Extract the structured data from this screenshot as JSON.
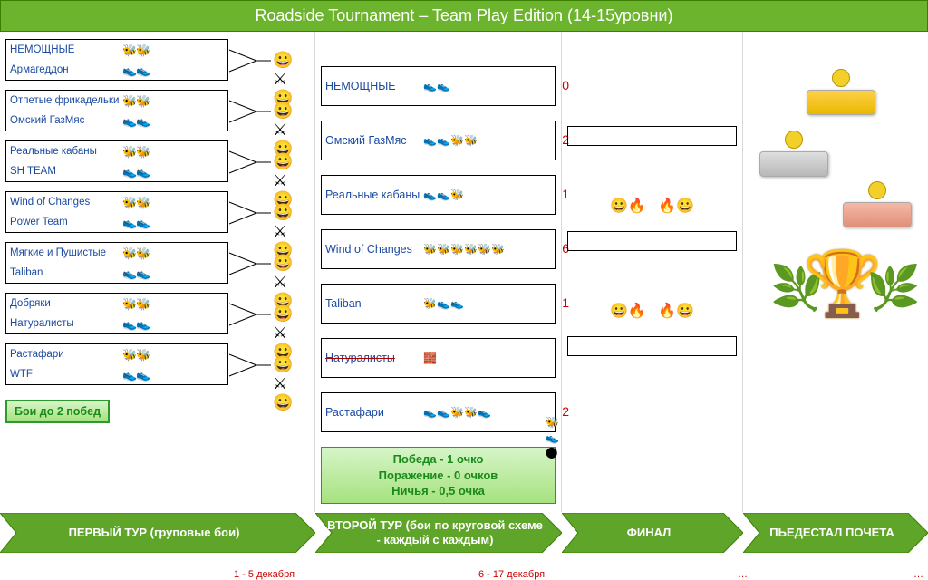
{
  "title": "Roadside Tournament – Team Play Edition (14-15уровни)",
  "colors": {
    "header_bg": "#6cb42e",
    "header_text": "#ffffff",
    "team_text": "#1a4aa0",
    "score_text": "#cc0000",
    "arrow_fill": "#5fa52a",
    "arrow_stroke": "#3a8000",
    "date_text": "#cc0000",
    "rules_text": "#1a8a1a",
    "border": "#000000",
    "col_divider": "#d9d9d9"
  },
  "round1_pairs": [
    {
      "top": "НЕМОЩНЫЕ",
      "bottom": "Армагеддон"
    },
    {
      "top": "Отпетые фрикадельки",
      "bottom": "Омский ГазМяс"
    },
    {
      "top": "Реальные кабаны",
      "bottom": "SH TEAM"
    },
    {
      "top": "Wind of Changes",
      "bottom": "Power Team"
    },
    {
      "top": "Мягкие и Пушистые",
      "bottom": "Taliban"
    },
    {
      "top": "Добряки",
      "bottom": "Натуралисты"
    },
    {
      "top": "Растафари",
      "bottom": "WTF"
    }
  ],
  "round2": [
    {
      "name": "НЕМОЩНЫЕ",
      "score": "0",
      "icons": "run run"
    },
    {
      "name": "Омский ГазМяс",
      "score": "2",
      "icons": "run run bee bee"
    },
    {
      "name": "Реальные кабаны",
      "score": "1",
      "icons": "run run bee"
    },
    {
      "name": "Wind of Changes",
      "score": "6",
      "icons": "bee bee bee bee bee bee"
    },
    {
      "name": "Taliban",
      "score": "1",
      "icons": "bee run run"
    },
    {
      "name": "Натуралисты",
      "score": "",
      "icons": "wall",
      "crossed": true
    },
    {
      "name": "Растафари",
      "score": "2",
      "icons": "run run bee bee run"
    }
  ],
  "bout_note": "Бои до 2 побед",
  "score_rules": [
    "Победа - 1 очко",
    "Поражение - 0 очков",
    "Ничья - 0,5 очка"
  ],
  "arrows": [
    "ПЕРВЫЙ ТУР (груповые бои)",
    "ВТОРОЙ ТУР (бои по круговой схеме - каждый с каждым)",
    "ФИНАЛ",
    "ПЬЕДЕСТАЛ ПОЧЕТА"
  ],
  "dates": {
    "r1": "1 - 5 декабря",
    "r2": "6 - 17 декабря",
    "ell": "…"
  },
  "icon_glyphs": {
    "bee": "🐝",
    "run": "👟",
    "vs": "⚔",
    "fire": "🔥"
  }
}
